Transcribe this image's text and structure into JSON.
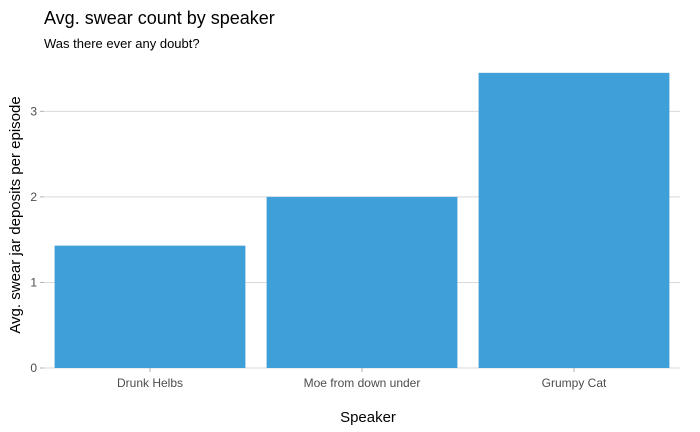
{
  "chart_data": {
    "type": "bar",
    "title": "Avg. swear count by speaker",
    "subtitle": "Was there ever any doubt?",
    "xlabel": "Speaker",
    "ylabel": "Avg. swear jar deposits per episode",
    "categories": [
      "Drunk Helbs",
      "Moe from down under",
      "Grumpy Cat"
    ],
    "values": [
      1.43,
      2.0,
      3.45
    ],
    "ylim": [
      0,
      3.6
    ],
    "yticks": [
      0,
      1,
      2,
      3
    ],
    "grid": "horizontal",
    "bar_color": "#3f9fd8"
  }
}
